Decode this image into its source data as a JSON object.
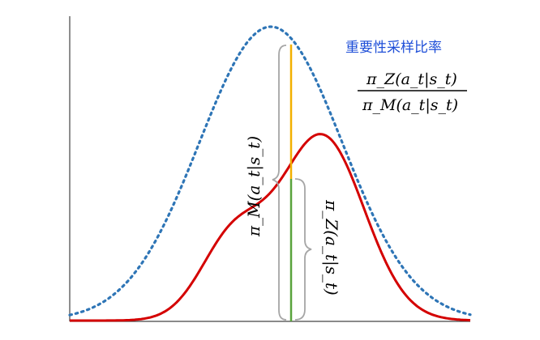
{
  "title": "重要性采样比率",
  "ratio": {
    "numerator": "π_Z(a_t|s_t)",
    "denominator": "π_M(a_t|s_t)"
  },
  "labels": {
    "pi_m": "π_M(a_t|s_t)",
    "pi_z": "π_Z(a_t|s_t)"
  },
  "colors": {
    "dotted_curve": "#2e75b6",
    "solid_curve": "#d40000",
    "upper_segment": "#f2b000",
    "lower_segment": "#59a33c",
    "brace": "#a6a6a6",
    "frame": "#444444",
    "title": "#1f4fd8"
  }
}
